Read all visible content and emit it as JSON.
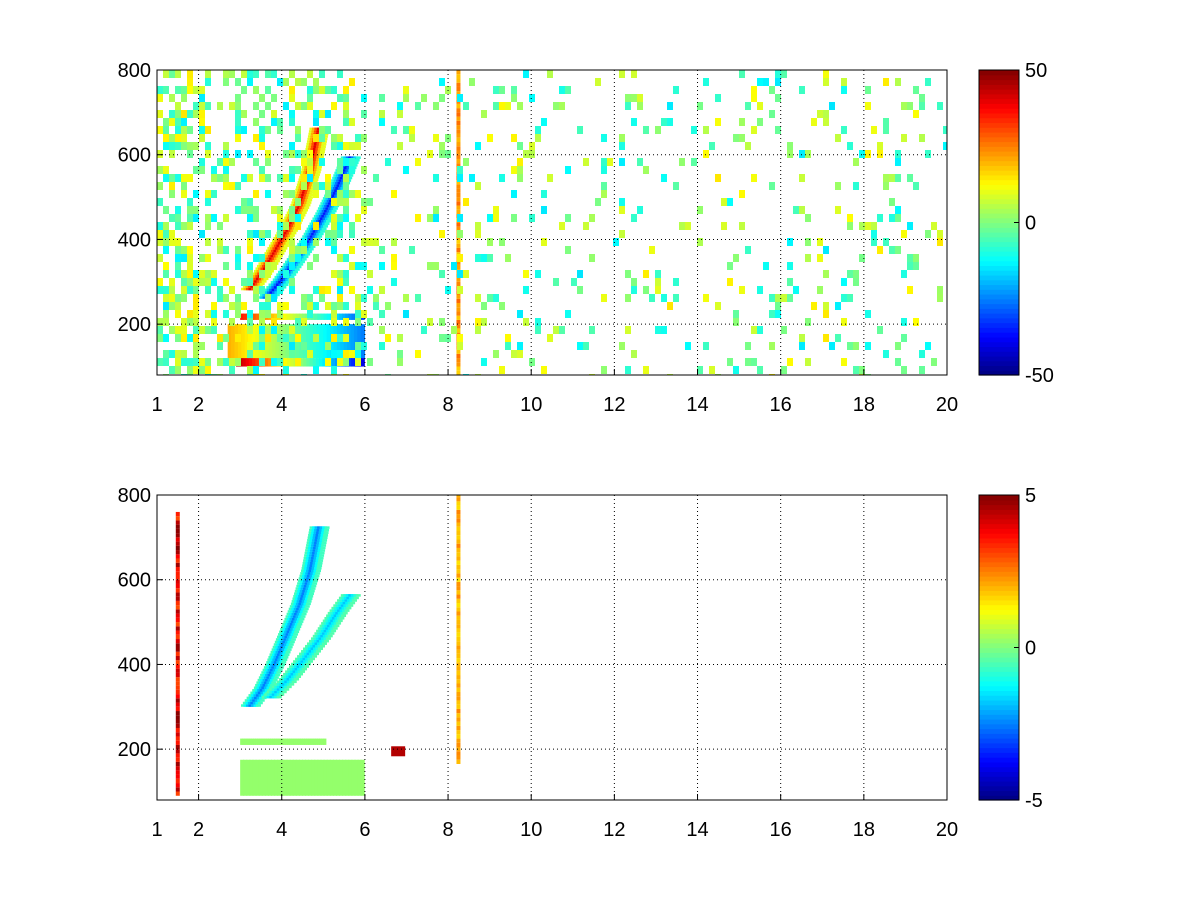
{
  "chart_data": [
    {
      "type": "heatmap",
      "title": "",
      "xlabel": "",
      "ylabel": "",
      "xlim": [
        1,
        20
      ],
      "ylim": [
        80,
        800
      ],
      "x_ticks": [
        1,
        2,
        4,
        6,
        8,
        10,
        12,
        14,
        16,
        18,
        20
      ],
      "x_tick_labels": [
        "1",
        "2",
        "4",
        "6",
        "8",
        "10",
        "12",
        "14",
        "16",
        "18",
        "20"
      ],
      "y_ticks": [
        200,
        400,
        600,
        800
      ],
      "y_tick_labels": [
        "200",
        "400",
        "600",
        "800"
      ],
      "grid": true,
      "colormap": "jet",
      "clim": [
        -50,
        50
      ],
      "colorbar_ticks": [
        -50,
        0,
        50
      ],
      "colorbar_tick_labels": [
        "-50",
        "0",
        "50"
      ],
      "features": [
        {
          "kind": "curve",
          "x": [
            3.2,
            3.5,
            3.8,
            4.1,
            4.4,
            4.65,
            4.85
          ],
          "y": [
            280,
            320,
            370,
            420,
            480,
            560,
            660
          ],
          "value": 40
        },
        {
          "kind": "curve",
          "x": [
            3.6,
            3.95,
            4.3,
            4.65,
            5.0,
            5.3,
            5.6
          ],
          "y": [
            260,
            300,
            350,
            400,
            460,
            520,
            590
          ],
          "value": -35
        },
        {
          "kind": "band",
          "x": [
            2.9,
            5.9
          ],
          "y": [
            100,
            120
          ],
          "value": 45,
          "right_value": -40
        },
        {
          "kind": "band",
          "x": [
            2.7,
            5.9
          ],
          "y": [
            120,
            200
          ],
          "value": 20,
          "right_value": -25
        },
        {
          "kind": "band",
          "x": [
            3.0,
            5.9
          ],
          "y": [
            210,
            225
          ],
          "value": 35,
          "right_value": -30
        },
        {
          "kind": "vline",
          "x": 8.25,
          "y": [
            80,
            800
          ],
          "value": 28
        },
        {
          "kind": "noise",
          "x": [
            1,
            20
          ],
          "y": [
            80,
            800
          ],
          "amplitude": 15
        }
      ]
    },
    {
      "type": "heatmap",
      "title": "",
      "xlabel": "",
      "ylabel": "",
      "xlim": [
        1,
        20
      ],
      "ylim": [
        80,
        800
      ],
      "x_ticks": [
        1,
        2,
        4,
        6,
        8,
        10,
        12,
        14,
        16,
        18,
        20
      ],
      "x_tick_labels": [
        "1",
        "2",
        "4",
        "6",
        "8",
        "10",
        "12",
        "14",
        "16",
        "18",
        "20"
      ],
      "y_ticks": [
        200,
        400,
        600,
        800
      ],
      "y_tick_labels": [
        "200",
        "400",
        "600",
        "800"
      ],
      "grid": true,
      "colormap": "jet",
      "clim": [
        -5,
        5
      ],
      "colorbar_ticks": [
        -5,
        0,
        5
      ],
      "colorbar_tick_labels": [
        "-5",
        "0",
        "5"
      ],
      "features": [
        {
          "kind": "curve",
          "x": [
            3.2,
            3.5,
            3.8,
            4.1,
            4.4,
            4.65,
            4.85
          ],
          "y": [
            300,
            340,
            400,
            470,
            540,
            620,
            720
          ],
          "value": -2.5
        },
        {
          "kind": "curve",
          "x": [
            3.7,
            4.1,
            4.5,
            4.9,
            5.3,
            5.6
          ],
          "y": [
            320,
            360,
            410,
            460,
            520,
            560
          ],
          "value": -1.8
        },
        {
          "kind": "band",
          "x": [
            3.0,
            5.9
          ],
          "y": [
            90,
            175
          ],
          "value": 0.2
        },
        {
          "kind": "band",
          "x": [
            3.0,
            5.0
          ],
          "y": [
            210,
            225
          ],
          "value": 0.2
        },
        {
          "kind": "vline",
          "x": 1.5,
          "y": [
            90,
            760
          ],
          "value": 5
        },
        {
          "kind": "vline",
          "x": 8.25,
          "y": [
            165,
            800
          ],
          "value": 2.5
        },
        {
          "kind": "blob",
          "x": 6.8,
          "y": 195,
          "value": 4.5
        }
      ]
    }
  ]
}
